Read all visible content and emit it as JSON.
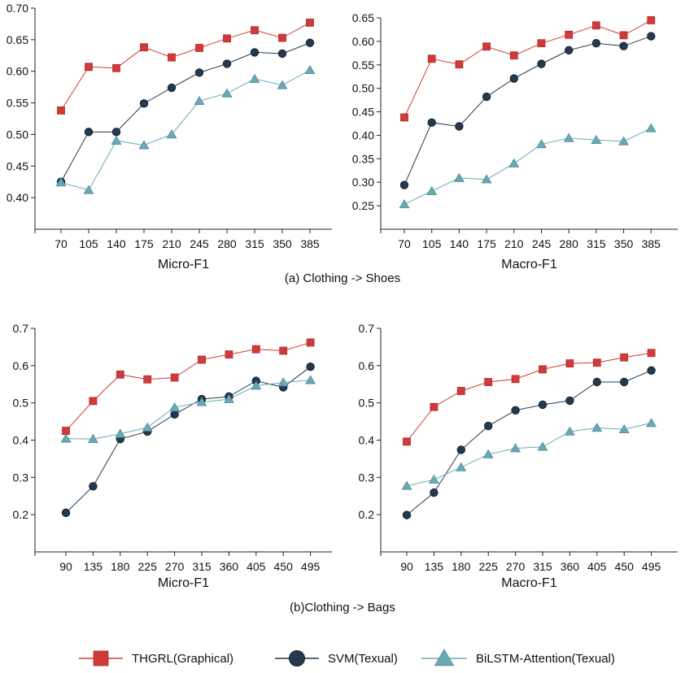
{
  "colors": {
    "THGRL": "#d03a3a",
    "SVM": "#24394d",
    "BiLSTM": "#6aa9b4",
    "axis": "#222222"
  },
  "captions": [
    "(a) Clothing -> Shoes",
    "(b)Clothing -> Bags"
  ],
  "legend": [
    {
      "name": "THGRL(Graphical)",
      "marker": "square",
      "color": "#d03a3a"
    },
    {
      "name": "SVM(Texual)",
      "marker": "circle",
      "color": "#24394d"
    },
    {
      "name": "BiLSTM-Attention(Texual)",
      "marker": "triangle",
      "color": "#6aa9b4"
    }
  ],
  "chart_data": [
    {
      "type": "line",
      "xlabel": "Micro-F1",
      "ylabel": "",
      "x": [
        "70",
        "105",
        "140",
        "175",
        "210",
        "245",
        "280",
        "315",
        "350",
        "385"
      ],
      "ylim": [
        0.35,
        0.7
      ],
      "yticks": [
        "0.40",
        "0.45",
        "0.50",
        "0.55",
        "0.60",
        "0.65",
        "0.70"
      ],
      "series": [
        {
          "name": "THGRL(Graphical)",
          "values": [
            0.538,
            0.607,
            0.605,
            0.638,
            0.622,
            0.637,
            0.652,
            0.665,
            0.653,
            0.677
          ]
        },
        {
          "name": "SVM(Texual)",
          "values": [
            0.425,
            0.504,
            0.504,
            0.549,
            0.574,
            0.598,
            0.612,
            0.63,
            0.628,
            0.645
          ]
        },
        {
          "name": "BiLSTM-Attention(Texual)",
          "values": [
            0.424,
            0.412,
            0.49,
            0.483,
            0.5,
            0.553,
            0.565,
            0.588,
            0.578,
            0.602
          ]
        }
      ]
    },
    {
      "type": "line",
      "xlabel": "Macro-F1",
      "ylabel": "",
      "x": [
        "70",
        "105",
        "140",
        "175",
        "210",
        "245",
        "280",
        "315",
        "350",
        "385"
      ],
      "ylim": [
        0.2,
        0.65
      ],
      "yticks": [
        "0.25",
        "0.30",
        "0.35",
        "0.40",
        "0.45",
        "0.50",
        "0.55",
        "0.60",
        "0.65"
      ],
      "series": [
        {
          "name": "THGRL(Graphical)",
          "values": [
            0.438,
            0.563,
            0.551,
            0.589,
            0.57,
            0.596,
            0.614,
            0.634,
            0.613,
            0.645
          ]
        },
        {
          "name": "SVM(Texual)",
          "values": [
            0.294,
            0.427,
            0.419,
            0.482,
            0.521,
            0.552,
            0.581,
            0.596,
            0.59,
            0.611
          ]
        },
        {
          "name": "BiLSTM-Attention(Texual)",
          "values": [
            0.253,
            0.281,
            0.309,
            0.306,
            0.34,
            0.381,
            0.394,
            0.39,
            0.387,
            0.415
          ]
        }
      ]
    },
    {
      "type": "line",
      "xlabel": "Micro-F1",
      "ylabel": "",
      "x": [
        "90",
        "135",
        "180",
        "225",
        "270",
        "315",
        "360",
        "405",
        "450",
        "495"
      ],
      "ylim": [
        0.1,
        0.7
      ],
      "yticks": [
        "0.2",
        "0.3",
        "0.4",
        "0.5",
        "0.6",
        "0.7"
      ],
      "series": [
        {
          "name": "THGRL(Graphical)",
          "values": [
            0.425,
            0.505,
            0.576,
            0.563,
            0.568,
            0.616,
            0.63,
            0.644,
            0.64,
            0.662
          ]
        },
        {
          "name": "SVM(Texual)",
          "values": [
            0.205,
            0.276,
            0.403,
            0.423,
            0.469,
            0.51,
            0.517,
            0.559,
            0.542,
            0.597
          ]
        },
        {
          "name": "BiLSTM-Attention(Texual)",
          "values": [
            0.404,
            0.403,
            0.417,
            0.434,
            0.488,
            0.502,
            0.51,
            0.546,
            0.555,
            0.561
          ]
        }
      ]
    },
    {
      "type": "line",
      "xlabel": "Macro-F1",
      "ylabel": "",
      "x": [
        "90",
        "135",
        "180",
        "225",
        "270",
        "315",
        "360",
        "405",
        "450",
        "495"
      ],
      "ylim": [
        0.1,
        0.7
      ],
      "yticks": [
        "0.2",
        "0.3",
        "0.4",
        "0.5",
        "0.6",
        "0.7"
      ],
      "series": [
        {
          "name": "THGRL(Graphical)",
          "values": [
            0.396,
            0.489,
            0.532,
            0.556,
            0.564,
            0.59,
            0.606,
            0.608,
            0.622,
            0.634
          ]
        },
        {
          "name": "SVM(Texual)",
          "values": [
            0.199,
            0.259,
            0.374,
            0.438,
            0.48,
            0.495,
            0.506,
            0.556,
            0.556,
            0.587
          ]
        },
        {
          "name": "BiLSTM-Attention(Texual)",
          "values": [
            0.277,
            0.294,
            0.327,
            0.362,
            0.378,
            0.382,
            0.423,
            0.433,
            0.429,
            0.446
          ]
        }
      ]
    }
  ]
}
